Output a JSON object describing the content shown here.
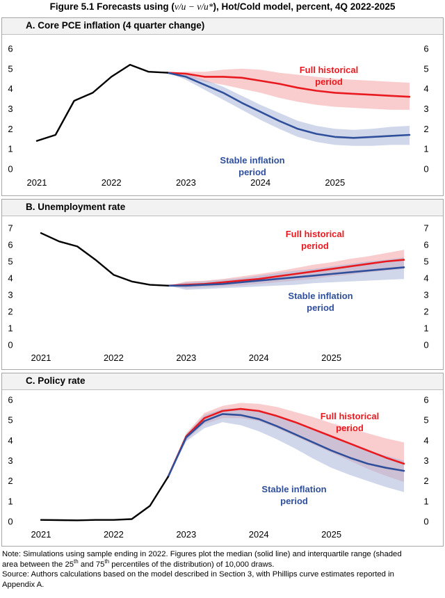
{
  "figure": {
    "title_before": "Figure 5.1 Forecasts using (",
    "title_math": "v/u − v/u*",
    "title_after": "), Hot/Cold model, percent, 4Q 2022-2025"
  },
  "note": {
    "line1": "Note: Simulations using sample ending in 2022. Figures plot the median (solid line) and interquartile range (shaded",
    "line2_a": "area between the 25",
    "sup1": "th",
    "line2_b": " and 75",
    "sup2": "th",
    "line2_c": " percentiles of the distribution) of 10,000 draws.",
    "line3": "Source: Authors calculations based on the model described in Section 3, with Phillips curve estimates reported in",
    "line4": "Appendix A."
  },
  "colors": {
    "history": "#000000",
    "full": "#e8191f",
    "stable": "#2f4f9b",
    "full_band": "#f4a3a6",
    "stable_band": "#a9b6d9"
  },
  "chart_data": [
    {
      "type": "line",
      "title": "A.  Core PCE inflation (4 quarter change)",
      "ylim": [
        0,
        6
      ],
      "yticks": [
        "0",
        "1",
        "2",
        "3",
        "4",
        "5",
        "6"
      ],
      "xlim": [
        2021.0,
        2026.0
      ],
      "xticks": [
        "2021",
        "2022",
        "2023",
        "2024",
        "2025"
      ],
      "history": {
        "name": "",
        "x": [
          2021.0,
          2021.25,
          2021.5,
          2021.75,
          2022.0,
          2022.25,
          2022.5,
          2022.75
        ],
        "values": [
          1.4,
          1.7,
          3.4,
          3.8,
          4.6,
          5.2,
          4.85,
          4.8
        ]
      },
      "series": [
        {
          "name": "Full historical period",
          "label_lines": [
            "Full historical",
            "period"
          ],
          "x": [
            2022.75,
            2023.0,
            2023.25,
            2023.5,
            2023.75,
            2024.0,
            2024.25,
            2024.5,
            2024.75,
            2025.0,
            2025.25,
            2025.5,
            2025.75,
            2026.0
          ],
          "values": [
            4.8,
            4.75,
            4.6,
            4.6,
            4.55,
            4.4,
            4.25,
            4.05,
            3.9,
            3.8,
            3.75,
            3.7,
            3.65,
            3.6
          ],
          "lower": [
            4.8,
            4.6,
            4.35,
            4.2,
            4.0,
            3.8,
            3.55,
            3.35,
            3.2,
            3.1,
            3.05,
            3.0,
            2.95,
            2.95
          ],
          "upper": [
            4.8,
            4.85,
            4.85,
            4.95,
            5.0,
            4.95,
            4.8,
            4.7,
            4.6,
            4.5,
            4.45,
            4.4,
            4.35,
            4.3
          ]
        },
        {
          "name": "Stable inflation period",
          "label_lines": [
            "Stable inflation",
            "period"
          ],
          "x": [
            2022.75,
            2023.0,
            2023.25,
            2023.5,
            2023.75,
            2024.0,
            2024.25,
            2024.5,
            2024.75,
            2025.0,
            2025.25,
            2025.5,
            2025.75,
            2026.0
          ],
          "values": [
            4.8,
            4.6,
            4.2,
            3.8,
            3.3,
            2.85,
            2.4,
            2.0,
            1.75,
            1.6,
            1.55,
            1.6,
            1.65,
            1.7
          ],
          "lower": [
            4.8,
            4.45,
            3.95,
            3.45,
            2.95,
            2.45,
            2.0,
            1.6,
            1.35,
            1.2,
            1.15,
            1.15,
            1.2,
            1.2
          ],
          "upper": [
            4.8,
            4.75,
            4.45,
            4.1,
            3.65,
            3.2,
            2.8,
            2.4,
            2.15,
            2.0,
            1.95,
            2.0,
            2.1,
            2.15
          ]
        }
      ]
    },
    {
      "type": "line",
      "title": "B.  Unemployment rate",
      "ylim": [
        0,
        7
      ],
      "yticks": [
        "0",
        "1",
        "2",
        "3",
        "4",
        "5",
        "6",
        "7"
      ],
      "xlim": [
        2021.0,
        2026.0
      ],
      "xticks": [
        "2021",
        "2022",
        "2023",
        "2024",
        "2025"
      ],
      "history": {
        "name": "",
        "x": [
          2021.0,
          2021.25,
          2021.5,
          2021.75,
          2022.0,
          2022.25,
          2022.5,
          2022.75
        ],
        "values": [
          6.7,
          6.2,
          5.9,
          5.1,
          4.2,
          3.8,
          3.6,
          3.55
        ]
      },
      "series": [
        {
          "name": "Full historical period",
          "label_lines": [
            "Full historical",
            "period"
          ],
          "x": [
            2022.75,
            2023.0,
            2023.25,
            2023.5,
            2023.75,
            2024.0,
            2024.25,
            2024.5,
            2024.75,
            2025.0,
            2025.25,
            2025.5,
            2025.75,
            2026.0
          ],
          "values": [
            3.55,
            3.6,
            3.65,
            3.75,
            3.85,
            3.95,
            4.1,
            4.25,
            4.4,
            4.55,
            4.7,
            4.85,
            5.0,
            5.1
          ],
          "lower": [
            3.55,
            3.4,
            3.45,
            3.5,
            3.55,
            3.65,
            3.75,
            3.85,
            3.95,
            4.1,
            4.2,
            4.35,
            4.45,
            4.55
          ],
          "upper": [
            3.55,
            3.8,
            3.85,
            3.95,
            4.1,
            4.25,
            4.4,
            4.6,
            4.8,
            4.95,
            5.15,
            5.3,
            5.5,
            5.7
          ]
        },
        {
          "name": "Stable inflation period",
          "label_lines": [
            "Stable inflation",
            "period"
          ],
          "x": [
            2022.75,
            2023.0,
            2023.25,
            2023.5,
            2023.75,
            2024.0,
            2024.25,
            2024.5,
            2024.75,
            2025.0,
            2025.25,
            2025.5,
            2025.75,
            2026.0
          ],
          "values": [
            3.55,
            3.55,
            3.6,
            3.65,
            3.75,
            3.85,
            3.95,
            4.05,
            4.15,
            4.25,
            4.35,
            4.45,
            4.55,
            4.65
          ],
          "lower": [
            3.55,
            3.3,
            3.35,
            3.4,
            3.45,
            3.5,
            3.55,
            3.6,
            3.7,
            3.75,
            3.8,
            3.85,
            3.9,
            3.95
          ],
          "upper": [
            3.55,
            3.75,
            3.8,
            3.9,
            4.0,
            4.15,
            4.3,
            4.45,
            4.55,
            4.7,
            4.85,
            5.0,
            5.1,
            5.25
          ]
        }
      ]
    },
    {
      "type": "line",
      "title": "C.  Policy rate",
      "ylim": [
        0,
        6
      ],
      "yticks": [
        "0",
        "1",
        "2",
        "3",
        "4",
        "5",
        "6"
      ],
      "xlim": [
        2021.0,
        2026.0
      ],
      "xticks": [
        "2021",
        "2022",
        "2023",
        "2024",
        "2025"
      ],
      "history": {
        "name": "",
        "x": [
          2021.0,
          2021.25,
          2021.5,
          2021.75,
          2022.0,
          2022.25,
          2022.5,
          2022.75
        ],
        "values": [
          0.08,
          0.07,
          0.06,
          0.08,
          0.08,
          0.12,
          0.77,
          2.2
        ]
      },
      "series": [
        {
          "name": "Full historical period",
          "label_lines": [
            "Full historical",
            "period"
          ],
          "x": [
            2022.75,
            2023.0,
            2023.25,
            2023.5,
            2023.75,
            2024.0,
            2024.25,
            2024.5,
            2024.75,
            2025.0,
            2025.25,
            2025.5,
            2025.75,
            2026.0
          ],
          "values": [
            2.2,
            4.2,
            5.1,
            5.45,
            5.55,
            5.45,
            5.2,
            4.9,
            4.55,
            4.2,
            3.85,
            3.5,
            3.15,
            2.85
          ],
          "lower": [
            2.2,
            4.0,
            4.8,
            5.1,
            5.1,
            4.95,
            4.6,
            4.2,
            3.8,
            3.4,
            3.0,
            2.6,
            2.25,
            1.95
          ],
          "upper": [
            2.2,
            4.35,
            5.35,
            5.7,
            5.85,
            5.8,
            5.65,
            5.4,
            5.15,
            4.85,
            4.6,
            4.35,
            4.1,
            3.9
          ]
        },
        {
          "name": "Stable inflation period",
          "label_lines": [
            "Stable inflation",
            "period"
          ],
          "x": [
            2022.75,
            2023.0,
            2023.25,
            2023.5,
            2023.75,
            2024.0,
            2024.25,
            2024.5,
            2024.75,
            2025.0,
            2025.25,
            2025.5,
            2025.75,
            2026.0
          ],
          "values": [
            2.2,
            4.15,
            4.95,
            5.3,
            5.25,
            5.05,
            4.7,
            4.3,
            3.9,
            3.5,
            3.15,
            2.85,
            2.65,
            2.5
          ],
          "lower": [
            2.2,
            3.95,
            4.6,
            4.9,
            4.75,
            4.45,
            4.05,
            3.6,
            3.1,
            2.65,
            2.3,
            2.0,
            1.7,
            1.45
          ],
          "upper": [
            2.2,
            4.3,
            5.25,
            5.55,
            5.6,
            5.45,
            5.2,
            4.85,
            4.5,
            4.15,
            3.8,
            3.5,
            3.25,
            3.0
          ]
        }
      ]
    }
  ]
}
